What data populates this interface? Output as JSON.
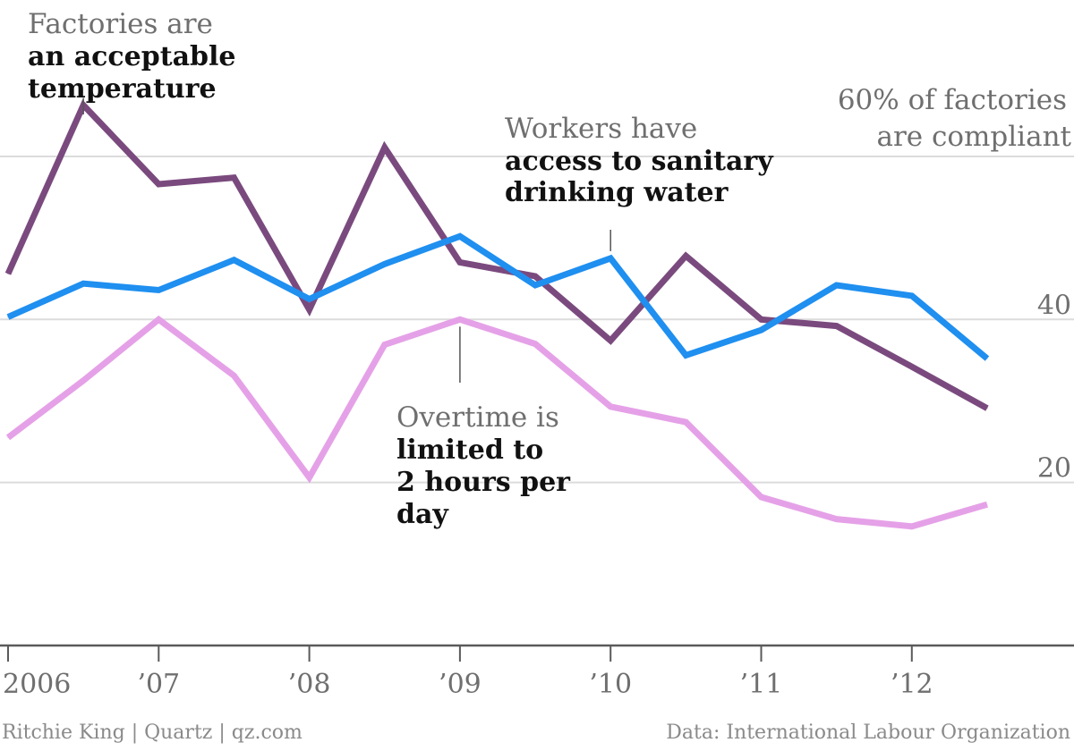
{
  "chart_data": {
    "type": "line",
    "x": [
      2006.0,
      2006.5,
      2007.0,
      2007.5,
      2008.0,
      2008.5,
      2009.0,
      2009.5,
      2010.0,
      2010.5,
      2011.0,
      2011.5,
      2012.0,
      2012.5
    ],
    "xticks": [
      "2006",
      "’07",
      "’08",
      "’09",
      "’10",
      "’11",
      "’12"
    ],
    "yticks": [
      {
        "value": 60,
        "label": ""
      },
      {
        "value": 40,
        "label": "40"
      },
      {
        "value": 20,
        "label": "20"
      }
    ],
    "ylim": [
      -2,
      80
    ],
    "grid": true,
    "series": [
      {
        "key": "temperature",
        "color": "#7a4a7e",
        "values": [
          45.6,
          66.3,
          56.6,
          57.4,
          41.2,
          61.1,
          47.0,
          45.3,
          37.4,
          47.8,
          40.0,
          39.2,
          34.2,
          29.1
        ]
      },
      {
        "key": "water",
        "color": "#1f8ff0",
        "values": [
          40.3,
          44.4,
          43.6,
          47.3,
          42.5,
          46.8,
          50.2,
          44.2,
          47.5,
          35.6,
          38.7,
          44.2,
          42.9,
          35.2
        ]
      },
      {
        "key": "overtime",
        "color": "#e5a1e7",
        "values": [
          25.5,
          32.5,
          40.0,
          33.1,
          20.6,
          36.9,
          40.0,
          37.0,
          29.3,
          27.4,
          18.2,
          15.5,
          14.6,
          17.3
        ]
      }
    ],
    "annotations": [
      {
        "key": "temperature",
        "light": [
          "Factories are"
        ],
        "bold": [
          "an acceptable",
          "temperature"
        ]
      },
      {
        "key": "water",
        "light": [
          "Workers have"
        ],
        "bold": [
          "access to sanitary",
          "drinking water"
        ]
      },
      {
        "key": "overtime",
        "light": [
          "Overtime is"
        ],
        "bold": [
          "limited to",
          "2 hours per",
          "day"
        ]
      }
    ],
    "top_label": [
      "60% of factories",
      "are compliant"
    ]
  },
  "footer": {
    "left": "Ritchie King | Quartz | qz.com",
    "right": "Data: International Labour Organization"
  }
}
